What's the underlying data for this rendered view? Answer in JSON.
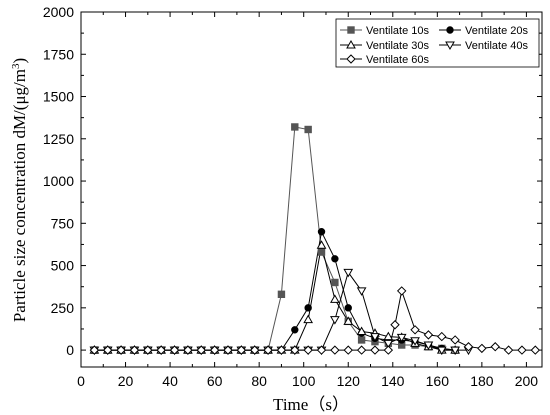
{
  "chart_data": {
    "type": "line",
    "title": "",
    "xlabel": "Time（s）",
    "ylabel_main": "Particle size concentration dM/(μg/m",
    "ylabel_sup": "3",
    "ylabel_end": ")",
    "xlim": [
      0,
      207
    ],
    "ylim": [
      -100,
      2000
    ],
    "xticks": [
      0,
      20,
      40,
      60,
      80,
      100,
      120,
      140,
      160,
      180,
      200
    ],
    "yticks": [
      0,
      250,
      500,
      750,
      1000,
      1250,
      1500,
      1750,
      2000
    ],
    "legend_position": "top-right",
    "series": [
      {
        "name": "Ventilate 10s",
        "marker": "square",
        "color": "#555555",
        "points": [
          [
            6,
            0
          ],
          [
            12,
            0
          ],
          [
            18,
            0
          ],
          [
            24,
            0
          ],
          [
            30,
            0
          ],
          [
            36,
            0
          ],
          [
            42,
            0
          ],
          [
            48,
            0
          ],
          [
            54,
            0
          ],
          [
            60,
            0
          ],
          [
            66,
            0
          ],
          [
            72,
            0
          ],
          [
            78,
            0
          ],
          [
            84,
            0
          ],
          [
            90,
            330
          ],
          [
            96,
            1320
          ],
          [
            102,
            1305
          ],
          [
            108,
            580
          ],
          [
            114,
            400
          ],
          [
            120,
            170
          ],
          [
            126,
            60
          ],
          [
            132,
            50
          ],
          [
            138,
            40
          ],
          [
            144,
            30
          ],
          [
            150,
            30
          ],
          [
            156,
            20
          ],
          [
            162,
            10
          ],
          [
            168,
            0
          ]
        ]
      },
      {
        "name": "Ventilate 20s",
        "marker": "circle",
        "color": "#000000",
        "points": [
          [
            6,
            0
          ],
          [
            12,
            0
          ],
          [
            18,
            0
          ],
          [
            24,
            0
          ],
          [
            30,
            0
          ],
          [
            36,
            0
          ],
          [
            42,
            0
          ],
          [
            48,
            0
          ],
          [
            54,
            0
          ],
          [
            60,
            0
          ],
          [
            66,
            0
          ],
          [
            72,
            0
          ],
          [
            78,
            0
          ],
          [
            84,
            0
          ],
          [
            90,
            0
          ],
          [
            96,
            120
          ],
          [
            102,
            250
          ],
          [
            108,
            700
          ],
          [
            114,
            540
          ],
          [
            120,
            250
          ],
          [
            126,
            100
          ],
          [
            132,
            70
          ],
          [
            138,
            60
          ],
          [
            144,
            60
          ],
          [
            150,
            50
          ],
          [
            156,
            30
          ],
          [
            162,
            10
          ],
          [
            168,
            0
          ]
        ]
      },
      {
        "name": "Ventilate 30s",
        "marker": "triangle-up",
        "color": "#000000",
        "points": [
          [
            6,
            0
          ],
          [
            12,
            0
          ],
          [
            18,
            0
          ],
          [
            24,
            0
          ],
          [
            30,
            0
          ],
          [
            36,
            0
          ],
          [
            42,
            0
          ],
          [
            48,
            0
          ],
          [
            54,
            0
          ],
          [
            60,
            0
          ],
          [
            66,
            0
          ],
          [
            72,
            0
          ],
          [
            78,
            0
          ],
          [
            84,
            0
          ],
          [
            90,
            0
          ],
          [
            96,
            0
          ],
          [
            102,
            180
          ],
          [
            108,
            620
          ],
          [
            114,
            300
          ],
          [
            120,
            170
          ],
          [
            126,
            110
          ],
          [
            132,
            100
          ],
          [
            138,
            80
          ],
          [
            144,
            75
          ],
          [
            150,
            40
          ],
          [
            156,
            20
          ],
          [
            162,
            0
          ],
          [
            168,
            0
          ]
        ]
      },
      {
        "name": "Ventilate 40s",
        "marker": "triangle-down",
        "color": "#000000",
        "points": [
          [
            6,
            0
          ],
          [
            12,
            0
          ],
          [
            18,
            0
          ],
          [
            24,
            0
          ],
          [
            30,
            0
          ],
          [
            36,
            0
          ],
          [
            42,
            0
          ],
          [
            48,
            0
          ],
          [
            54,
            0
          ],
          [
            60,
            0
          ],
          [
            66,
            0
          ],
          [
            72,
            0
          ],
          [
            78,
            0
          ],
          [
            84,
            0
          ],
          [
            90,
            0
          ],
          [
            96,
            0
          ],
          [
            102,
            0
          ],
          [
            108,
            0
          ],
          [
            114,
            180
          ],
          [
            120,
            460
          ],
          [
            126,
            350
          ],
          [
            132,
            80
          ],
          [
            138,
            40
          ],
          [
            144,
            75
          ],
          [
            150,
            55
          ],
          [
            156,
            30
          ],
          [
            162,
            0
          ],
          [
            168,
            0
          ],
          [
            174,
            0
          ]
        ]
      },
      {
        "name": "Ventilate 60s",
        "marker": "diamond",
        "color": "#000000",
        "points": [
          [
            6,
            0
          ],
          [
            12,
            0
          ],
          [
            18,
            0
          ],
          [
            24,
            0
          ],
          [
            30,
            0
          ],
          [
            36,
            0
          ],
          [
            42,
            0
          ],
          [
            48,
            0
          ],
          [
            54,
            0
          ],
          [
            60,
            0
          ],
          [
            66,
            0
          ],
          [
            72,
            0
          ],
          [
            78,
            0
          ],
          [
            84,
            0
          ],
          [
            90,
            0
          ],
          [
            96,
            0
          ],
          [
            102,
            0
          ],
          [
            108,
            0
          ],
          [
            114,
            0
          ],
          [
            120,
            0
          ],
          [
            126,
            0
          ],
          [
            132,
            0
          ],
          [
            138,
            0
          ],
          [
            141,
            150
          ],
          [
            144,
            350
          ],
          [
            150,
            120
          ],
          [
            156,
            90
          ],
          [
            162,
            80
          ],
          [
            168,
            60
          ],
          [
            174,
            20
          ],
          [
            180,
            10
          ],
          [
            186,
            20
          ],
          [
            192,
            0
          ],
          [
            198,
            0
          ],
          [
            204,
            0
          ]
        ]
      }
    ]
  }
}
